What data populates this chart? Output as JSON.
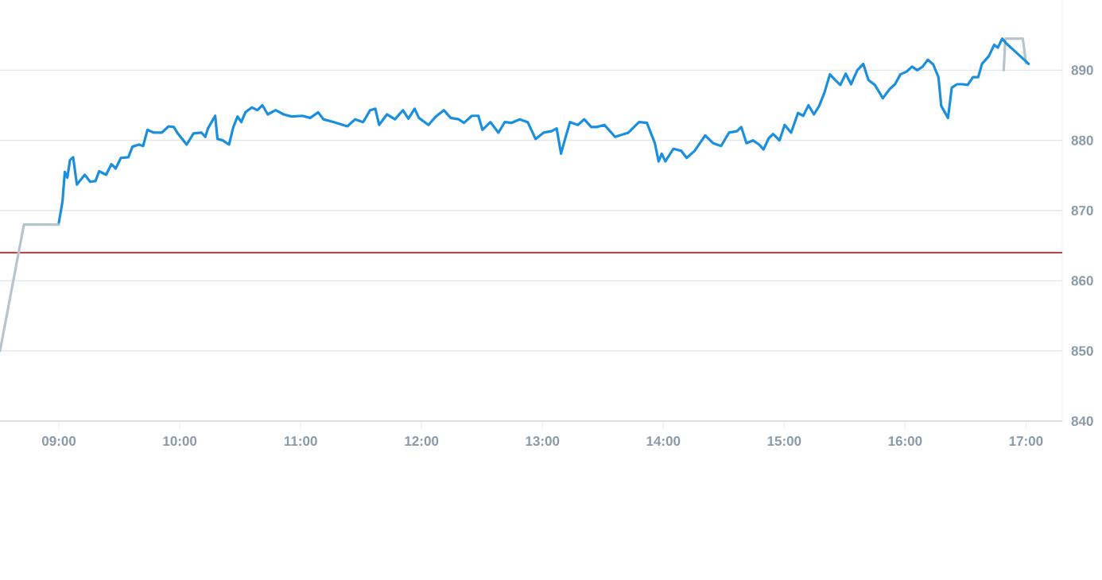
{
  "chart_data": {
    "type": "line",
    "xlim": [
      8.513,
      17.3
    ],
    "ylim": [
      840,
      900
    ],
    "xticks": [
      {
        "value": 9,
        "label": "09:00"
      },
      {
        "value": 10,
        "label": "10:00"
      },
      {
        "value": 11,
        "label": "11:00"
      },
      {
        "value": 12,
        "label": "12:00"
      },
      {
        "value": 13,
        "label": "13:00"
      },
      {
        "value": 14,
        "label": "14:00"
      },
      {
        "value": 15,
        "label": "15:00"
      },
      {
        "value": 16,
        "label": "16:00"
      },
      {
        "value": 17,
        "label": "17:00"
      }
    ],
    "yticks": [
      840,
      850,
      860,
      870,
      880,
      890
    ],
    "grid": "y",
    "ref_lines": [
      {
        "axis": "y",
        "value": 864,
        "color": "#d43a3a"
      }
    ],
    "series": [
      {
        "color": "#b8c4cc",
        "x": [
          8.513,
          8.711,
          9.0
        ],
        "values": [
          850,
          868,
          868
        ]
      },
      {
        "color": "#b8c4cc",
        "x": [
          16.816,
          16.829,
          16.974,
          17.0
        ],
        "values": [
          890,
          894.5,
          894.5,
          891
        ]
      },
      {
        "color": "#1a8fdd",
        "x": [
          9.0,
          9.03,
          9.049,
          9.07,
          9.092,
          9.118,
          9.149,
          9.214,
          9.259,
          9.303,
          9.333,
          9.391,
          9.434,
          9.47,
          9.513,
          9.575,
          9.609,
          9.662,
          9.697,
          9.733,
          9.786,
          9.851,
          9.908,
          9.951,
          9.983,
          10.057,
          10.114,
          10.18,
          10.211,
          10.233,
          10.293,
          10.312,
          10.355,
          10.408,
          10.443,
          10.478,
          10.509,
          10.543,
          10.596,
          10.641,
          10.684,
          10.728,
          10.793,
          10.859,
          10.925,
          11.013,
          11.079,
          11.145,
          11.188,
          11.276,
          11.386,
          11.451,
          11.517,
          11.575,
          11.618,
          11.649,
          11.714,
          11.78,
          11.846,
          11.891,
          11.943,
          11.978,
          12.057,
          12.118,
          12.184,
          12.241,
          12.307,
          12.351,
          12.417,
          12.47,
          12.504,
          12.57,
          12.636,
          12.688,
          12.746,
          12.812,
          12.878,
          12.943,
          13.009,
          13.075,
          13.118,
          13.154,
          13.184,
          13.228,
          13.293,
          13.346,
          13.404,
          13.447,
          13.513,
          13.601,
          13.711,
          13.799,
          13.864,
          13.93,
          13.961,
          13.987,
          14.017,
          14.083,
          14.149,
          14.193,
          14.259,
          14.303,
          14.346,
          14.412,
          14.478,
          14.543,
          14.609,
          14.645,
          14.688,
          14.741,
          14.793,
          14.829,
          14.872,
          14.908,
          14.961,
          15.004,
          15.057,
          15.114,
          15.158,
          15.201,
          15.246,
          15.289,
          15.333,
          15.378,
          15.421,
          15.464,
          15.509,
          15.553,
          15.605,
          15.654,
          15.697,
          15.75,
          15.816,
          15.872,
          15.917,
          15.961,
          16.013,
          16.057,
          16.101,
          16.145,
          16.188,
          16.233,
          16.276,
          16.299,
          16.355,
          16.386,
          16.43,
          16.474,
          16.518,
          16.562,
          16.605,
          16.636,
          16.693,
          16.737,
          16.767,
          16.803,
          16.838,
          17.022
        ],
        "values": [
          868.3,
          871.3,
          875.5,
          874.7,
          877.2,
          877.6,
          873.7,
          875.1,
          874.1,
          874.2,
          875.6,
          875.1,
          876.6,
          876,
          877.5,
          877.6,
          879.1,
          879.4,
          879.2,
          881.5,
          881.1,
          881.1,
          882,
          881.9,
          881,
          879.4,
          881,
          881.1,
          880.5,
          881.7,
          883.5,
          880.2,
          880,
          879.4,
          881.9,
          883.4,
          882.6,
          884,
          884.7,
          884.3,
          885,
          883.7,
          884.3,
          883.7,
          883.4,
          883.5,
          883.2,
          884,
          883,
          882.6,
          882,
          883,
          882.6,
          884.3,
          884.5,
          882.2,
          883.7,
          883,
          884.3,
          883.1,
          884.5,
          883.2,
          882.2,
          883.4,
          884.3,
          883.2,
          883,
          882.5,
          883.5,
          883.5,
          881.5,
          882.6,
          881.1,
          882.6,
          882.5,
          883,
          882.6,
          880.2,
          881.1,
          881.3,
          881.7,
          878.1,
          880,
          882.6,
          882.2,
          883,
          881.9,
          881.9,
          882.2,
          880.5,
          881.1,
          882.6,
          882.5,
          879.6,
          877,
          878.1,
          877,
          878.8,
          878.5,
          877.5,
          878.5,
          879.6,
          880.7,
          879.6,
          879.2,
          881.1,
          881.3,
          881.9,
          879.6,
          880,
          879.4,
          878.7,
          880.3,
          880.9,
          880,
          882.2,
          881.1,
          883.9,
          883.5,
          885,
          883.7,
          884.9,
          886.8,
          889.4,
          888.6,
          887.9,
          889.5,
          888,
          890,
          890.9,
          888.6,
          887.9,
          886,
          887.3,
          888,
          889.4,
          889.8,
          890.5,
          890,
          890.5,
          891.5,
          890.8,
          889,
          884.9,
          883.2,
          887.5,
          888,
          888,
          887.9,
          889,
          889,
          890.9,
          892,
          893.6,
          893.2,
          894.5,
          893.8,
          890.9
        ]
      }
    ]
  }
}
